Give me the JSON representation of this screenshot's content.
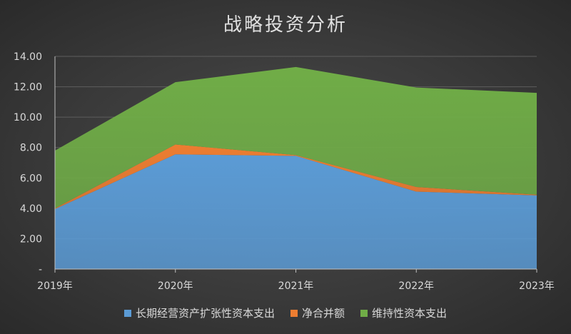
{
  "chart_data": {
    "type": "area",
    "stacked": true,
    "title": "战略投资分析",
    "categories": [
      "2019年",
      "2020年",
      "2021年",
      "2022年",
      "2023年"
    ],
    "ylim": [
      0,
      14
    ],
    "yticks": [
      "-",
      "2.00",
      "4.00",
      "6.00",
      "8.00",
      "10.00",
      "12.00",
      "14.00"
    ],
    "grid": true,
    "legend_position": "bottom",
    "series": [
      {
        "name": "长期经营资产扩张性资本支出",
        "values": [
          3.95,
          7.55,
          7.45,
          5.1,
          4.85
        ],
        "color": "#5b9bd5"
      },
      {
        "name": "净合并额",
        "values": [
          0.05,
          0.65,
          0.05,
          0.3,
          0.05
        ],
        "color": "#ed7d31"
      },
      {
        "name": "维持性资本支出",
        "values": [
          3.8,
          4.1,
          5.8,
          6.55,
          6.7
        ],
        "color": "#70ad47"
      }
    ]
  }
}
